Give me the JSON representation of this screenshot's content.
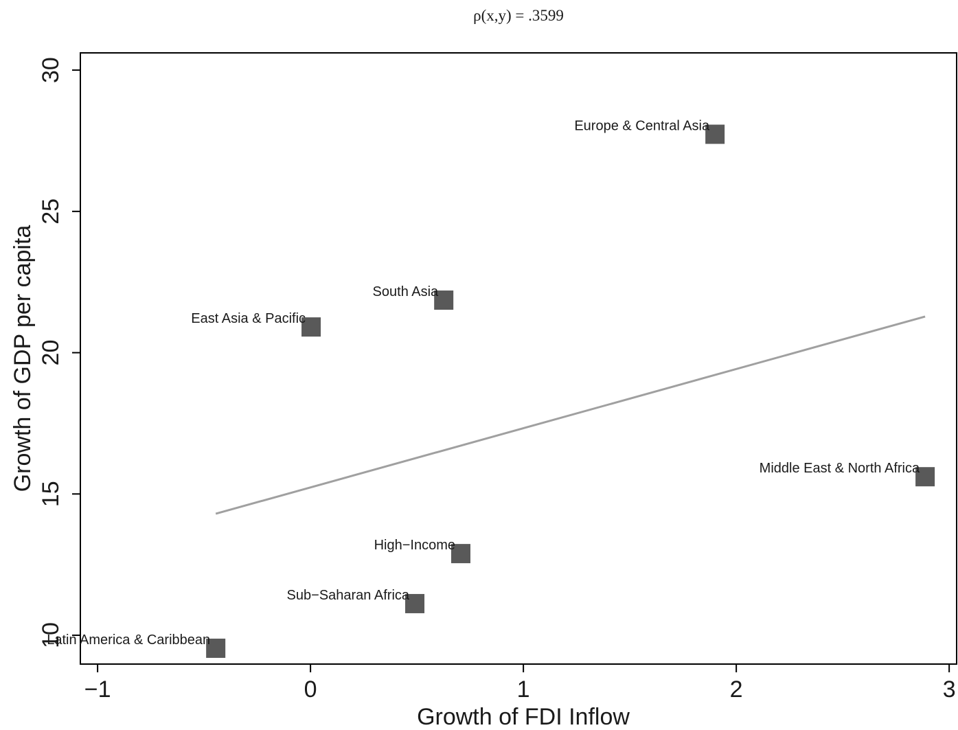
{
  "chart_data": {
    "type": "scatter",
    "title": "ρ(x,y) = .3599",
    "x_label": "Growth of FDI Inflow",
    "y_label": "Growth of GDP per capita",
    "xlim": [
      -1.081,
      3.035
    ],
    "ylim": [
      8.98,
      30.61
    ],
    "xticks": [
      {
        "value": -1,
        "label": "−1"
      },
      0,
      1,
      2,
      3
    ],
    "yticks": [
      10,
      15,
      20,
      25,
      30
    ],
    "series": [
      {
        "name": "Regions",
        "color": "#595959",
        "labels": [
          "Europe & Central Asia",
          "South Asia",
          "East Asia & Pacific",
          "Middle East & North Africa",
          "High−Income",
          "Sub−Saharan Africa",
          "Latin America & Caribbean"
        ],
        "x": [
          1.9,
          0.626,
          0.003,
          2.887,
          0.706,
          0.49,
          -0.445
        ],
        "values": [
          27.73,
          21.86,
          20.91,
          15.61,
          12.89,
          11.12,
          9.54
        ]
      }
    ],
    "fit": {
      "color": "#a0a0a0",
      "x": [
        -0.445,
        2.887
      ],
      "values": [
        14.3,
        21.28
      ]
    }
  }
}
